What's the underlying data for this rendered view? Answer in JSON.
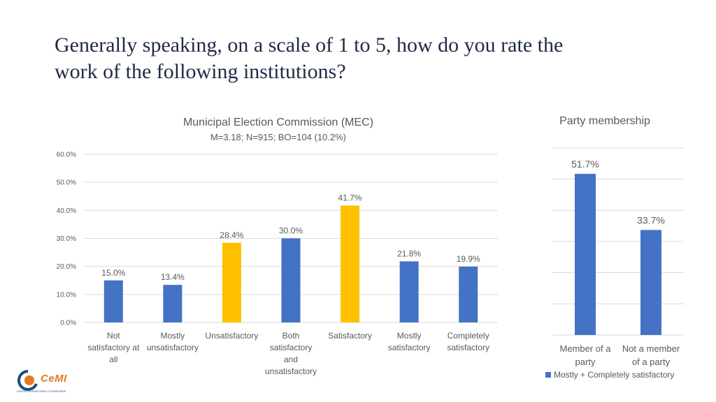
{
  "page": {
    "title_line1": "Generally speaking, on a scale of 1 to 5, how do you rate the",
    "title_line2": "work of the following institutions?"
  },
  "logo": {
    "name": "CeMI",
    "subtitle": "CENTAR ZA MONITORING I ISTRAŽIVANJE"
  },
  "colors": {
    "blue": "#4472c4",
    "yellow": "#ffc000",
    "grid": "#d9d9d9",
    "text": "#595959",
    "title": "#1f2a44"
  },
  "chart_data": [
    {
      "type": "bar",
      "title": "Municipal Election Commission (MEC)",
      "subtitle": "M=3.18; N=915; BO=104 (10.2%)",
      "categories": [
        "Not satisfactory at all",
        "Mostly unsatisfactory",
        "Unsatisfactory",
        "Both satisfactory and unsatisfactory",
        "Satisfactory",
        "Mostly satisfactory",
        "Completely satisfactory"
      ],
      "category_lines": [
        [
          "Not",
          "satisfactory at",
          "all"
        ],
        [
          "Mostly",
          "unsatisfactory"
        ],
        [
          "Unsatisfactory"
        ],
        [
          "Both",
          "satisfactory",
          "and",
          "unsatisfactory"
        ],
        [
          "Satisfactory"
        ],
        [
          "Mostly",
          "satisfactory"
        ],
        [
          "Completely",
          "satisfactory"
        ]
      ],
      "values": [
        15.0,
        13.4,
        28.4,
        30.0,
        41.7,
        21.8,
        19.9
      ],
      "value_labels": [
        "15.0%",
        "13.4%",
        "28.4%",
        "30.0%",
        "41.7%",
        "21.8%",
        "19.9%"
      ],
      "bar_colors": [
        "blue",
        "blue",
        "yellow",
        "blue",
        "yellow",
        "blue",
        "blue"
      ],
      "ylim": [
        0,
        60
      ],
      "yticks": [
        0,
        10,
        20,
        30,
        40,
        50,
        60
      ],
      "ytick_labels": [
        "0.0%",
        "10.0%",
        "20.0%",
        "30.0%",
        "40.0%",
        "50.0%",
        "60.0%"
      ],
      "grid": true
    },
    {
      "type": "bar",
      "title": "Party membership",
      "categories": [
        "Member of a party",
        "Not a member of a party"
      ],
      "category_lines": [
        [
          "Member of a",
          "party"
        ],
        [
          "Not a member",
          "of a party"
        ]
      ],
      "values": [
        51.7,
        33.7
      ],
      "value_labels": [
        "51.7%",
        "33.7%"
      ],
      "legend": "Mostly + Completely satisfactory",
      "legend_position": "bottom",
      "ylim": [
        0,
        60
      ],
      "grid": true
    }
  ]
}
